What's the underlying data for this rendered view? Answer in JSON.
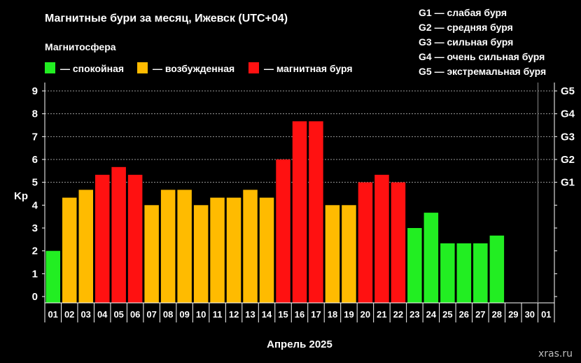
{
  "title": "Магнитные бури за месяц, Ижевск (UTC+04)",
  "legend_title": "Магнитосфера",
  "legend": [
    {
      "label": "— спокойная",
      "color": "#22ee22"
    },
    {
      "label": "— возбужденная",
      "color": "#ffbb00"
    },
    {
      "label": "— магнитная буря",
      "color": "#ff1111"
    }
  ],
  "storm_scale": [
    "G1 — слабая буря",
    "G2 — средняя буря",
    "G3 — сильная буря",
    "G4 — очень сильная буря",
    "G5 — экстремальная буря"
  ],
  "watermark": "xras.ru",
  "chart_data": {
    "type": "bar",
    "title": "Магнитные бури за месяц, Ижевск (UTC+04)",
    "xlabel": "Апрель 2025",
    "ylabel": "Kp",
    "ylim": [
      0,
      9
    ],
    "yticks": [
      "0",
      "1",
      "2",
      "3",
      "4",
      "5",
      "6",
      "7",
      "8",
      "9"
    ],
    "right_ticks": [
      {
        "value": 5,
        "label": "G1"
      },
      {
        "value": 6,
        "label": "G2"
      },
      {
        "value": 7,
        "label": "G3"
      },
      {
        "value": 8,
        "label": "G4"
      },
      {
        "value": 9,
        "label": "G5"
      }
    ],
    "categories": [
      "01",
      "02",
      "03",
      "04",
      "05",
      "06",
      "07",
      "08",
      "09",
      "10",
      "11",
      "12",
      "13",
      "14",
      "15",
      "16",
      "17",
      "18",
      "19",
      "20",
      "21",
      "22",
      "23",
      "24",
      "25",
      "26",
      "27",
      "28",
      "29",
      "30",
      "01"
    ],
    "values": [
      2,
      4.33,
      4.67,
      5.33,
      5.67,
      5.33,
      4,
      4.67,
      4.67,
      4,
      4.33,
      4.33,
      4.67,
      4.33,
      6,
      7.67,
      7.67,
      4,
      4,
      5,
      5.33,
      5,
      3,
      3.67,
      2.33,
      2.33,
      2.33,
      2.67,
      null,
      null,
      null
    ],
    "colors": [
      "#22ee22",
      "#ffbb00",
      "#ffbb00",
      "#ff1111",
      "#ff1111",
      "#ff1111",
      "#ffbb00",
      "#ffbb00",
      "#ffbb00",
      "#ffbb00",
      "#ffbb00",
      "#ffbb00",
      "#ffbb00",
      "#ffbb00",
      "#ff1111",
      "#ff1111",
      "#ff1111",
      "#ffbb00",
      "#ffbb00",
      "#ff1111",
      "#ff1111",
      "#ff1111",
      "#22ee22",
      "#22ee22",
      "#22ee22",
      "#22ee22",
      "#22ee22",
      "#22ee22",
      null,
      null,
      null
    ],
    "grid": "dotted horizontal at G-levels",
    "legend_position": "top-left"
  }
}
